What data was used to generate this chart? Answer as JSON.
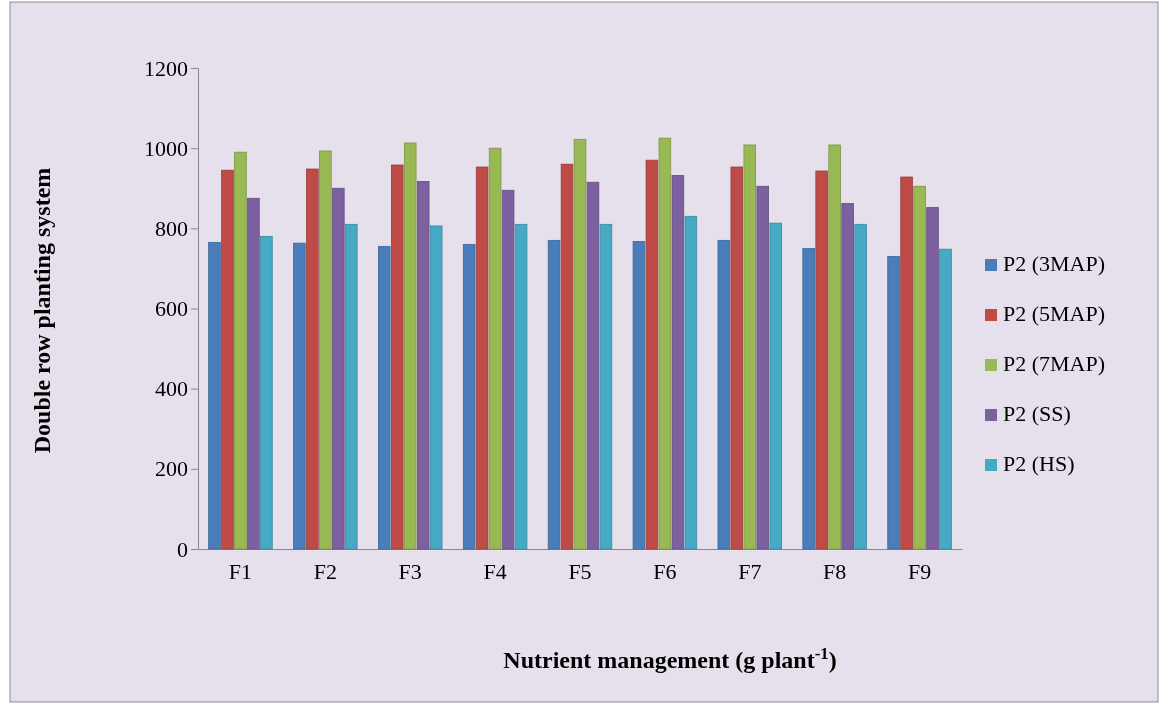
{
  "chart_data": {
    "type": "bar",
    "xlabel": "Nutrient management (g plant$^{-1}$)",
    "ylabel": "Double row planting system",
    "categories": [
      "F1",
      "F2",
      "F3",
      "F4",
      "F5",
      "F6",
      "F7",
      "F8",
      "F9"
    ],
    "series": [
      {
        "name": "P2 (3MAP)",
        "color": "#4a7ebb",
        "values": [
          765,
          763,
          755,
          760,
          770,
          767,
          770,
          750,
          730
        ]
      },
      {
        "name": "P2 (5MAP)",
        "color": "#be4b48",
        "values": [
          945,
          948,
          958,
          953,
          960,
          970,
          953,
          943,
          928
        ]
      },
      {
        "name": "P2 (7MAP)",
        "color": "#98b954",
        "values": [
          990,
          993,
          1013,
          1000,
          1022,
          1025,
          1008,
          1008,
          905
        ]
      },
      {
        "name": "P2 (SS)",
        "color": "#7d60a0",
        "values": [
          875,
          900,
          917,
          895,
          915,
          932,
          905,
          862,
          852
        ]
      },
      {
        "name": "P2 (HS)",
        "color": "#46aac5",
        "values": [
          780,
          810,
          806,
          810,
          810,
          830,
          813,
          810,
          748
        ]
      }
    ],
    "ylim": [
      0,
      1200
    ],
    "yticks": [
      0,
      200,
      400,
      600,
      800,
      1000,
      1200
    ],
    "legend": "right"
  }
}
